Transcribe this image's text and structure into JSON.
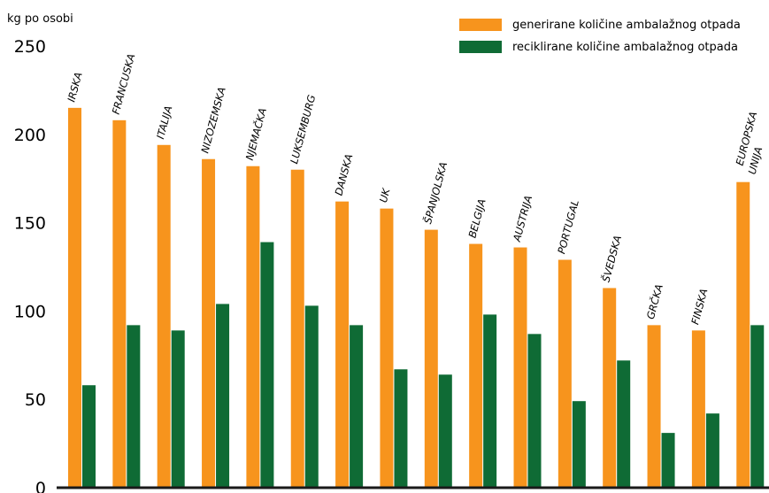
{
  "chart_data": {
    "type": "bar",
    "ylabel": "kg po osobi",
    "ylim": [
      0,
      250
    ],
    "yticks": [
      0,
      50,
      100,
      150,
      200,
      250
    ],
    "categories": [
      "IRSKA",
      "FRANCUSKA",
      "ITALIJA",
      "NIZOZEMSKA",
      "NJEMAČKA",
      "LUKSEMBURG",
      "DANSKA",
      "UK",
      "ŠPANJOLSKA",
      "BELGIJA",
      "AUSTRIJA",
      "PORTUGAL",
      "ŠVEDSKA",
      "GRČKA",
      "FINSKA",
      "EUROPSKA UNIJA"
    ],
    "series": [
      {
        "name": "generirane količine ambalažnog otpada",
        "color": "#F7941D",
        "values": [
          215,
          208,
          194,
          186,
          182,
          180,
          162,
          158,
          146,
          138,
          136,
          129,
          113,
          92,
          89,
          173
        ]
      },
      {
        "name": "reciklirane količine ambalažnog otpada",
        "color": "#0F6B35",
        "values": [
          58,
          92,
          89,
          104,
          139,
          103,
          92,
          67,
          64,
          98,
          87,
          49,
          72,
          31,
          42,
          92
        ]
      }
    ],
    "legend": "top-right",
    "grid": false
  }
}
